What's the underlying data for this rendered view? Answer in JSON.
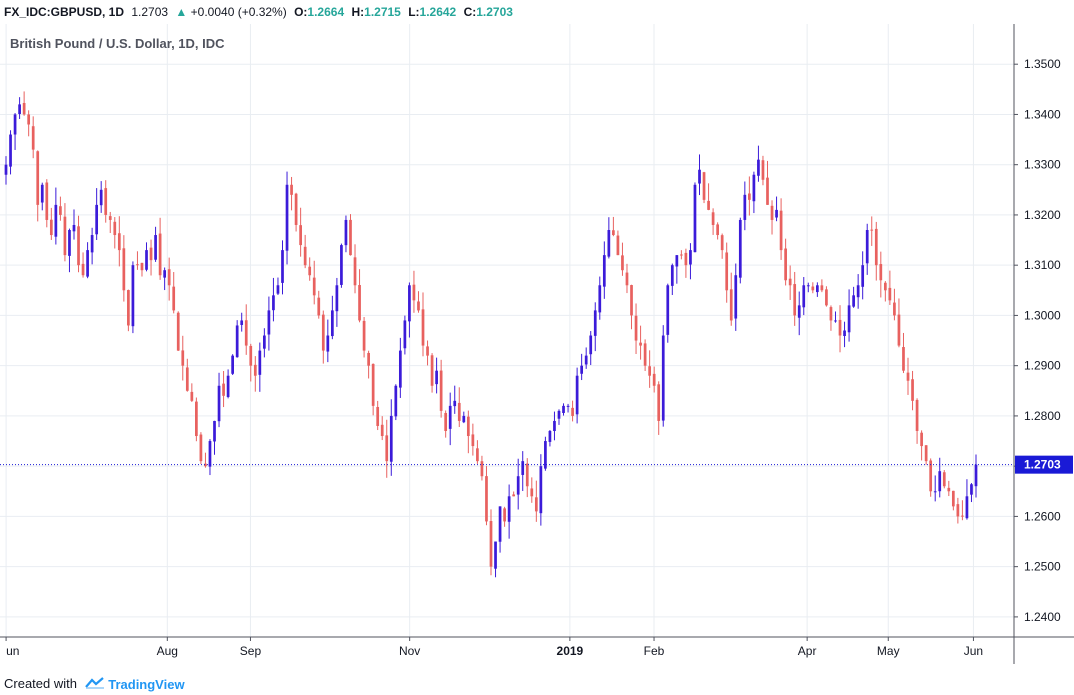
{
  "header": {
    "symbol": "FX_IDC:GBPUSD, 1D",
    "last": "1.2703",
    "change_arrow": "▲",
    "change": "+0.0040 (+0.32%)",
    "o_label": "O:",
    "o": "1.2664",
    "h_label": "H:",
    "h": "1.2715",
    "l_label": "L:",
    "l": "1.2642",
    "c_label": "C:",
    "c": "1.2703",
    "up_color": "#26a69a"
  },
  "footer": {
    "created_with": "Created with",
    "brand": "TradingView",
    "brand_icon": "tradingview-logo-icon"
  },
  "chart_data": {
    "type": "candlestick",
    "title": "British Pound / U.S. Dollar, 1D, IDC",
    "ylim": [
      1.236,
      1.358
    ],
    "y_ticks": [
      "1.2400",
      "1.2500",
      "1.2600",
      "1.2700",
      "1.2800",
      "1.2900",
      "1.3000",
      "1.3100",
      "1.3200",
      "1.3300",
      "1.3400",
      "1.3500"
    ],
    "x_ticks": [
      "un",
      "Aug",
      "Sep",
      "Nov",
      "2019",
      "Feb",
      "Apr",
      "May",
      "Jun"
    ],
    "last_price": 1.2703,
    "last_price_label": "1.2703",
    "colors": {
      "up": "#3b1bd9",
      "down": "#e8615f",
      "last_line": "#1a1ad6",
      "grid": "#e9edf2"
    },
    "grid": true,
    "closes": [
      1.33,
      1.336,
      1.34,
      1.342,
      1.34,
      1.338,
      1.333,
      1.322,
      1.326,
      1.319,
      1.316,
      1.322,
      1.32,
      1.312,
      1.317,
      1.318,
      1.31,
      1.308,
      1.313,
      1.316,
      1.322,
      1.325,
      1.32,
      1.319,
      1.316,
      1.313,
      1.305,
      1.298,
      1.31,
      1.31,
      1.309,
      1.313,
      1.311,
      1.316,
      1.308,
      1.309,
      1.306,
      1.301,
      1.293,
      1.29,
      1.285,
      1.283,
      1.276,
      1.271,
      1.27,
      1.275,
      1.279,
      1.286,
      1.284,
      1.288,
      1.292,
      1.298,
      1.299,
      1.294,
      1.29,
      1.288,
      1.293,
      1.296,
      1.301,
      1.304,
      1.306,
      1.313,
      1.326,
      1.324,
      1.318,
      1.314,
      1.31,
      1.308,
      1.304,
      1.3,
      1.293,
      1.296,
      1.301,
      1.306,
      1.314,
      1.319,
      1.312,
      1.306,
      1.299,
      1.293,
      1.29,
      1.282,
      1.278,
      1.276,
      1.271,
      1.28,
      1.286,
      1.293,
      1.299,
      1.306,
      1.303,
      1.301,
      1.294,
      1.292,
      1.286,
      1.289,
      1.281,
      1.277,
      1.282,
      1.283,
      1.279,
      1.28,
      1.276,
      1.274,
      1.271,
      1.268,
      1.259,
      1.25,
      1.255,
      1.262,
      1.259,
      1.264,
      1.264,
      1.268,
      1.271,
      1.266,
      1.264,
      1.261,
      1.27,
      1.275,
      1.277,
      1.279,
      1.281,
      1.282,
      1.282,
      1.28,
      1.288,
      1.29,
      1.292,
      1.296,
      1.301,
      1.306,
      1.312,
      1.317,
      1.316,
      1.312,
      1.309,
      1.306,
      1.3,
      1.295,
      1.294,
      1.29,
      1.288,
      1.286,
      1.279,
      1.296,
      1.306,
      1.31,
      1.312,
      1.312,
      1.31,
      1.313,
      1.326,
      1.329,
      1.323,
      1.321,
      1.318,
      1.316,
      1.313,
      1.305,
      1.299,
      1.308,
      1.319,
      1.324,
      1.323,
      1.328,
      1.331,
      1.327,
      1.322,
      1.319,
      1.321,
      1.313,
      1.307,
      1.306,
      1.3,
      1.302,
      1.306,
      1.306,
      1.305,
      1.306,
      1.305,
      1.302,
      1.299,
      1.299,
      1.296,
      1.297,
      1.302,
      1.304,
      1.306,
      1.31,
      1.317,
      1.317,
      1.31,
      1.307,
      1.305,
      1.303,
      1.3,
      1.294,
      1.289,
      1.287,
      1.283,
      1.277,
      1.274,
      1.271,
      1.265,
      1.265,
      1.269,
      1.266,
      1.265,
      1.262,
      1.26,
      1.26,
      1.264,
      1.2664,
      1.2703
    ]
  }
}
